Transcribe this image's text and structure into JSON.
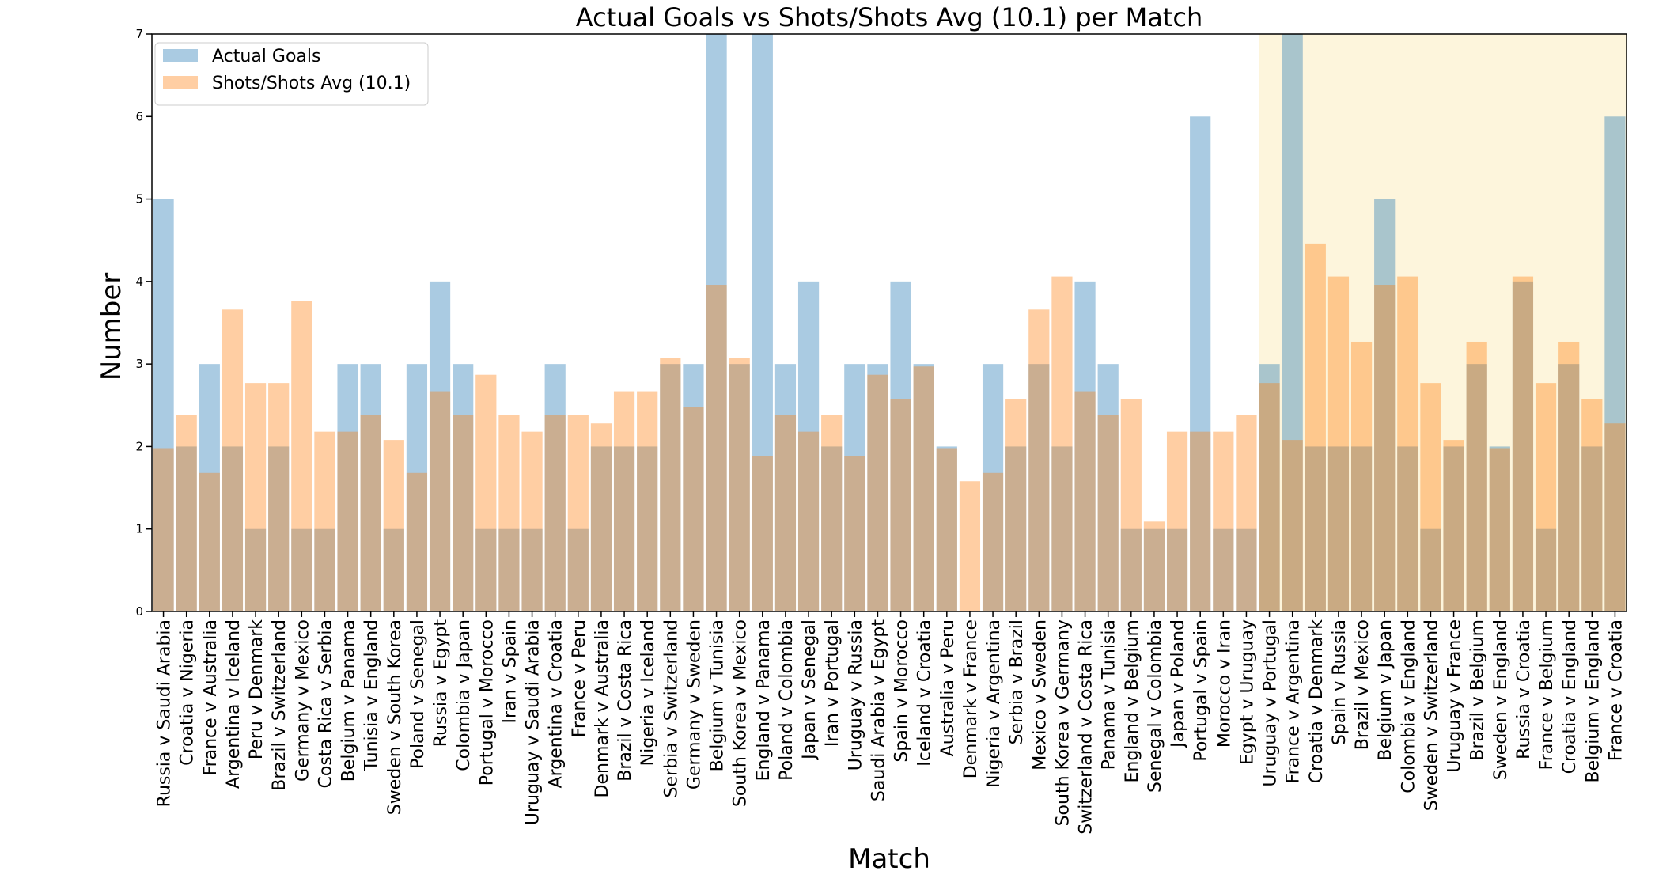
{
  "chart_data": {
    "type": "bar",
    "title": "Actual Goals vs Shots/Shots Avg (10.1) per Match",
    "xlabel": "Match",
    "ylabel": "Number",
    "ylim": [
      0,
      7
    ],
    "yticks": [
      "0",
      "1",
      "2",
      "3",
      "4",
      "5",
      "6",
      "7"
    ],
    "grid": false,
    "legend_position": "top-left",
    "highlight_region": {
      "from_category": "Uruguay v Portugal",
      "to_category": "France v Croatia",
      "color": "#fdf5dc"
    },
    "categories": [
      "Russia v Saudi Arabia",
      "Croatia v Nigeria",
      "France v Australia",
      "Argentina v Iceland",
      "Peru v Denmark",
      "Brazil v Switzerland",
      "Germany v Mexico",
      "Costa Rica v Serbia",
      "Belgium v Panama",
      "Tunisia v England",
      "Sweden v South Korea",
      "Poland v Senegal",
      "Russia v Egypt",
      "Colombia v Japan",
      "Portugal v Morocco",
      "Iran v Spain",
      "Uruguay v Saudi Arabia",
      "Argentina v Croatia",
      "France v Peru",
      "Denmark v Australia",
      "Brazil v Costa Rica",
      "Nigeria v Iceland",
      "Serbia v Switzerland",
      "Germany v Sweden",
      "Belgium v Tunisia",
      "South Korea v Mexico",
      "England v Panama",
      "Poland v Colombia",
      "Japan v Senegal",
      "Iran v Portugal",
      "Uruguay v Russia",
      "Saudi Arabia v Egypt",
      "Spain v Morocco",
      "Iceland v Croatia",
      "Australia v Peru",
      "Denmark v France",
      "Nigeria v Argentina",
      "Serbia v Brazil",
      "Mexico v Sweden",
      "South Korea v Germany",
      "Switzerland v Costa Rica",
      "Panama v Tunisia",
      "England v Belgium",
      "Senegal v Colombia",
      "Japan v Poland",
      "Portugal v Spain",
      "Morocco v Iran",
      "Egypt v Uruguay",
      "Uruguay v Portugal",
      "France v Argentina",
      "Croatia v Denmark",
      "Spain v Russia",
      "Brazil v Mexico",
      "Belgium v Japan",
      "Colombia v England",
      "Sweden v Switzerland",
      "Uruguay v France",
      "Brazil v Belgium",
      "Sweden v England",
      "Russia v Croatia",
      "France v Belgium",
      "Croatia v England",
      "Belgium v England",
      "France v Croatia"
    ],
    "series": [
      {
        "name": "Actual Goals",
        "color": "#1f77b4",
        "opacity": 0.38,
        "values": [
          5,
          2,
          3,
          2,
          1,
          2,
          1,
          1,
          3,
          3,
          1,
          3,
          4,
          3,
          1,
          1,
          1,
          3,
          1,
          2,
          2,
          2,
          3,
          3,
          7,
          3,
          7,
          3,
          4,
          2,
          3,
          3,
          4,
          3,
          2,
          0,
          3,
          2,
          3,
          2,
          4,
          3,
          1,
          1,
          1,
          6,
          1,
          1,
          3,
          7,
          2,
          2,
          2,
          5,
          2,
          1,
          2,
          3,
          2,
          4,
          1,
          3,
          2,
          6
        ]
      },
      {
        "name": "Shots/Shots Avg (10.1)",
        "color": "#ff7f0e",
        "opacity": 0.38,
        "values": [
          1.98,
          2.38,
          1.68,
          3.66,
          2.77,
          2.77,
          3.76,
          2.18,
          2.18,
          2.38,
          2.08,
          1.68,
          2.67,
          2.38,
          2.87,
          2.38,
          2.18,
          2.38,
          2.38,
          2.28,
          2.67,
          2.67,
          3.07,
          2.48,
          3.96,
          3.07,
          1.88,
          2.38,
          2.18,
          2.38,
          1.88,
          2.87,
          2.57,
          2.97,
          1.98,
          1.58,
          1.68,
          2.57,
          3.66,
          4.06,
          2.67,
          2.38,
          2.57,
          1.09,
          2.18,
          2.18,
          2.18,
          2.38,
          2.77,
          2.08,
          4.46,
          4.06,
          3.27,
          3.96,
          4.06,
          2.77,
          2.08,
          3.27,
          1.98,
          4.06,
          2.77,
          3.27,
          2.57,
          2.28
        ]
      }
    ]
  }
}
